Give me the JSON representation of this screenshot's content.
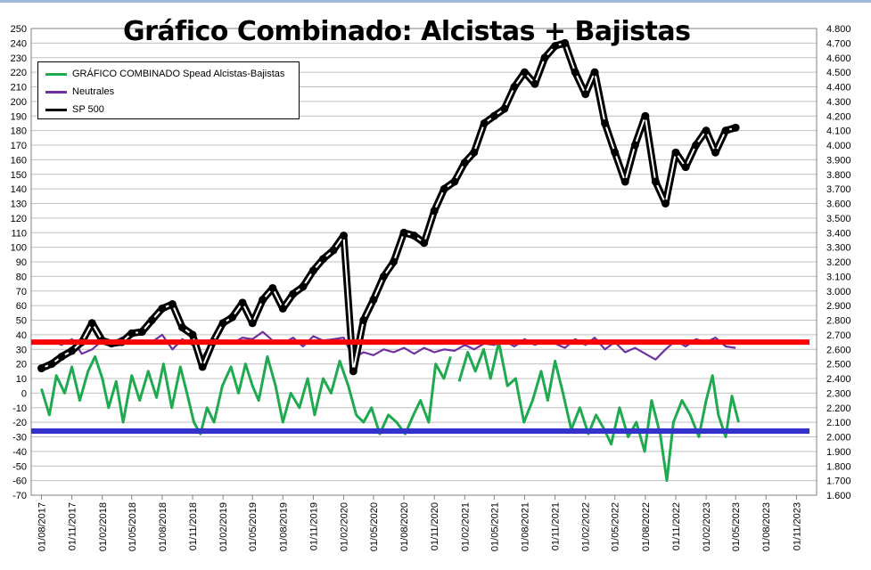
{
  "title": "Gráfico Combinado: Alcistas + Bajistas",
  "colors": {
    "green": "#1faa50",
    "purple": "#7030a0",
    "black": "#000000",
    "red": "#ff0000",
    "blue": "#3333cc",
    "grid": "#c0c0c0"
  },
  "chart_data": {
    "type": "line",
    "title": "Gráfico Combinado: Alcistas + Bajistas",
    "left_axis": {
      "min": -70,
      "max": 250,
      "step": 10
    },
    "right_axis": {
      "min": 1600,
      "max": 4800,
      "step": 100
    },
    "x_tick_labels": [
      "01/08/2017",
      "01/11/2017",
      "01/02/2018",
      "01/05/2018",
      "01/08/2018",
      "01/11/2018",
      "01/02/2019",
      "01/05/2019",
      "01/08/2019",
      "01/11/2019",
      "01/02/2020",
      "01/05/2020",
      "01/08/2020",
      "01/11/2020",
      "01/02/2021",
      "01/05/2021",
      "01/08/2021",
      "01/11/2021",
      "01/02/2022",
      "01/05/2022",
      "01/08/2022",
      "01/11/2022",
      "01/02/2023",
      "01/05/2023",
      "01/08/2023",
      "01/11/2023"
    ],
    "grid": "horizontal",
    "legend_position": "top-left",
    "reference_lines": [
      {
        "axis": "left",
        "value": 35,
        "color": "red"
      },
      {
        "axis": "left",
        "value": -26,
        "color": "blue"
      }
    ],
    "series": [
      {
        "name": "GRÁFICO COMBINADO Spead Alcistas-Bajistas",
        "axis": "left",
        "points": [
          [
            "2017-08-01",
            3
          ],
          [
            "2017-08-25",
            -15
          ],
          [
            "2017-09-15",
            12
          ],
          [
            "2017-10-10",
            0
          ],
          [
            "2017-11-01",
            18
          ],
          [
            "2017-11-25",
            -5
          ],
          [
            "2017-12-20",
            15
          ],
          [
            "2018-01-10",
            25
          ],
          [
            "2018-02-01",
            10
          ],
          [
            "2018-02-20",
            -10
          ],
          [
            "2018-03-15",
            8
          ],
          [
            "2018-04-05",
            -20
          ],
          [
            "2018-05-01",
            12
          ],
          [
            "2018-05-25",
            -5
          ],
          [
            "2018-06-20",
            15
          ],
          [
            "2018-07-15",
            -3
          ],
          [
            "2018-08-05",
            20
          ],
          [
            "2018-08-30",
            -10
          ],
          [
            "2018-09-25",
            18
          ],
          [
            "2018-10-15",
            0
          ],
          [
            "2018-11-05",
            -20
          ],
          [
            "2018-11-25",
            -28
          ],
          [
            "2018-12-15",
            -10
          ],
          [
            "2019-01-05",
            -20
          ],
          [
            "2019-01-30",
            5
          ],
          [
            "2019-02-25",
            18
          ],
          [
            "2019-03-20",
            0
          ],
          [
            "2019-04-10",
            20
          ],
          [
            "2019-05-01",
            5
          ],
          [
            "2019-05-20",
            -5
          ],
          [
            "2019-06-15",
            25
          ],
          [
            "2019-07-10",
            5
          ],
          [
            "2019-08-01",
            -20
          ],
          [
            "2019-08-25",
            0
          ],
          [
            "2019-09-20",
            -10
          ],
          [
            "2019-10-15",
            10
          ],
          [
            "2019-11-05",
            -15
          ],
          [
            "2019-12-01",
            10
          ],
          [
            "2019-12-25",
            0
          ],
          [
            "2020-01-20",
            22
          ],
          [
            "2020-02-15",
            5
          ],
          [
            "2020-03-10",
            -15
          ],
          [
            "2020-04-01",
            -20
          ],
          [
            "2020-04-25",
            -10
          ],
          [
            "2020-05-20",
            -28
          ],
          [
            "2020-06-15",
            -15
          ],
          [
            "2020-07-10",
            -20
          ],
          [
            "2020-08-05",
            -28
          ],
          [
            "2020-08-30",
            -15
          ],
          [
            "2020-09-20",
            -5
          ],
          [
            "2020-10-15",
            -20
          ],
          [
            "2020-11-05",
            20
          ],
          [
            "2020-11-30",
            10
          ],
          [
            "2020-12-20",
            25
          ]
        ],
        "points_b": [
          [
            "2021-01-15",
            8
          ],
          [
            "2021-02-10",
            28
          ],
          [
            "2021-03-05",
            15
          ],
          [
            "2021-03-30",
            30
          ],
          [
            "2021-04-20",
            10
          ],
          [
            "2021-05-15",
            35
          ],
          [
            "2021-06-10",
            5
          ],
          [
            "2021-07-05",
            10
          ],
          [
            "2021-07-30",
            -20
          ],
          [
            "2021-08-25",
            -5
          ],
          [
            "2021-09-20",
            15
          ],
          [
            "2021-10-10",
            -5
          ],
          [
            "2021-11-01",
            22
          ],
          [
            "2021-11-25",
            0
          ],
          [
            "2021-12-20",
            -25
          ],
          [
            "2022-01-15",
            -10
          ],
          [
            "2022-02-10",
            -28
          ],
          [
            "2022-03-05",
            -15
          ],
          [
            "2022-03-30",
            -25
          ],
          [
            "2022-04-20",
            -35
          ],
          [
            "2022-05-15",
            -10
          ],
          [
            "2022-06-10",
            -30
          ],
          [
            "2022-07-05",
            -20
          ],
          [
            "2022-07-30",
            -40
          ],
          [
            "2022-08-20",
            -5
          ],
          [
            "2022-09-15",
            -28
          ],
          [
            "2022-10-05",
            -60
          ],
          [
            "2022-10-25",
            -20
          ],
          [
            "2022-11-20",
            -5
          ],
          [
            "2022-12-15",
            -15
          ],
          [
            "2023-01-10",
            -30
          ],
          [
            "2023-02-01",
            -5
          ],
          [
            "2023-02-20",
            12
          ],
          [
            "2023-03-10",
            -15
          ],
          [
            "2023-04-01",
            -30
          ],
          [
            "2023-04-20",
            -2
          ],
          [
            "2023-05-10",
            -20
          ]
        ]
      },
      {
        "name": "Neutrales",
        "axis": "left",
        "points": [
          [
            "2017-08-01",
            34
          ],
          [
            "2017-09-01",
            36
          ],
          [
            "2017-10-01",
            33
          ],
          [
            "2017-11-01",
            37
          ],
          [
            "2017-12-01",
            27
          ],
          [
            "2018-01-01",
            30
          ],
          [
            "2018-02-01",
            36
          ],
          [
            "2018-03-01",
            34
          ],
          [
            "2018-04-01",
            38
          ],
          [
            "2018-05-01",
            35
          ],
          [
            "2018-06-01",
            36
          ],
          [
            "2018-07-01",
            35
          ],
          [
            "2018-08-01",
            40
          ],
          [
            "2018-09-01",
            30
          ],
          [
            "2018-10-01",
            37
          ],
          [
            "2018-11-01",
            33
          ],
          [
            "2018-12-01",
            25
          ],
          [
            "2019-01-01",
            35
          ],
          [
            "2019-02-01",
            36
          ],
          [
            "2019-03-01",
            34
          ],
          [
            "2019-04-01",
            38
          ],
          [
            "2019-05-01",
            37
          ],
          [
            "2019-06-01",
            42
          ],
          [
            "2019-07-01",
            36
          ],
          [
            "2019-08-01",
            34
          ],
          [
            "2019-09-01",
            38
          ],
          [
            "2019-10-01",
            32
          ],
          [
            "2019-11-01",
            39
          ],
          [
            "2019-12-01",
            36
          ],
          [
            "2020-01-01",
            37
          ],
          [
            "2020-02-01",
            38
          ],
          [
            "2020-03-01",
            24
          ],
          [
            "2020-04-01",
            28
          ],
          [
            "2020-05-01",
            26
          ],
          [
            "2020-06-01",
            30
          ],
          [
            "2020-07-01",
            28
          ],
          [
            "2020-08-01",
            31
          ],
          [
            "2020-09-01",
            27
          ],
          [
            "2020-10-01",
            31
          ],
          [
            "2020-11-01",
            28
          ],
          [
            "2020-12-01",
            30
          ],
          [
            "2021-01-01",
            29
          ],
          [
            "2021-02-01",
            33
          ],
          [
            "2021-03-01",
            30
          ],
          [
            "2021-04-01",
            34
          ],
          [
            "2021-05-01",
            33
          ],
          [
            "2021-06-01",
            36
          ],
          [
            "2021-07-01",
            32
          ],
          [
            "2021-08-01",
            37
          ],
          [
            "2021-09-01",
            33
          ],
          [
            "2021-10-01",
            36
          ],
          [
            "2021-11-01",
            34
          ],
          [
            "2021-12-01",
            31
          ],
          [
            "2022-01-01",
            37
          ],
          [
            "2022-02-01",
            33
          ],
          [
            "2022-03-01",
            38
          ],
          [
            "2022-04-01",
            30
          ],
          [
            "2022-05-01",
            35
          ],
          [
            "2022-06-01",
            28
          ],
          [
            "2022-07-01",
            31
          ],
          [
            "2022-08-01",
            27
          ],
          [
            "2022-09-01",
            23
          ],
          [
            "2022-10-01",
            30
          ],
          [
            "2022-11-01",
            36
          ],
          [
            "2022-12-01",
            32
          ],
          [
            "2023-01-01",
            37
          ],
          [
            "2023-02-01",
            35
          ],
          [
            "2023-03-01",
            38
          ],
          [
            "2023-04-01",
            32
          ],
          [
            "2023-05-01",
            31
          ]
        ]
      },
      {
        "name": "SP 500",
        "axis": "right",
        "points": [
          [
            "2017-08-01",
            2470
          ],
          [
            "2017-09-01",
            2500
          ],
          [
            "2017-10-01",
            2550
          ],
          [
            "2017-11-01",
            2590
          ],
          [
            "2017-12-01",
            2650
          ],
          [
            "2018-01-01",
            2780
          ],
          [
            "2018-02-01",
            2660
          ],
          [
            "2018-03-01",
            2640
          ],
          [
            "2018-04-01",
            2650
          ],
          [
            "2018-05-01",
            2710
          ],
          [
            "2018-06-01",
            2720
          ],
          [
            "2018-07-01",
            2800
          ],
          [
            "2018-08-01",
            2880
          ],
          [
            "2018-09-01",
            2910
          ],
          [
            "2018-10-01",
            2750
          ],
          [
            "2018-11-01",
            2700
          ],
          [
            "2018-12-01",
            2480
          ],
          [
            "2019-01-01",
            2650
          ],
          [
            "2019-02-01",
            2780
          ],
          [
            "2019-03-01",
            2820
          ],
          [
            "2019-04-01",
            2920
          ],
          [
            "2019-05-01",
            2780
          ],
          [
            "2019-06-01",
            2940
          ],
          [
            "2019-07-01",
            3020
          ],
          [
            "2019-08-01",
            2880
          ],
          [
            "2019-09-01",
            2980
          ],
          [
            "2019-10-01",
            3030
          ],
          [
            "2019-11-01",
            3140
          ],
          [
            "2019-12-01",
            3220
          ],
          [
            "2020-01-01",
            3280
          ],
          [
            "2020-02-01",
            3380
          ],
          [
            "2020-03-01",
            2450
          ],
          [
            "2020-04-01",
            2800
          ],
          [
            "2020-05-01",
            2940
          ],
          [
            "2020-06-01",
            3100
          ],
          [
            "2020-07-01",
            3200
          ],
          [
            "2020-08-01",
            3400
          ],
          [
            "2020-09-01",
            3380
          ],
          [
            "2020-10-01",
            3330
          ],
          [
            "2020-11-01",
            3550
          ],
          [
            "2020-12-01",
            3700
          ],
          [
            "2021-01-01",
            3750
          ],
          [
            "2021-02-01",
            3880
          ],
          [
            "2021-03-01",
            3950
          ],
          [
            "2021-04-01",
            4150
          ],
          [
            "2021-05-01",
            4200
          ],
          [
            "2021-06-01",
            4250
          ],
          [
            "2021-07-01",
            4400
          ],
          [
            "2021-08-01",
            4500
          ],
          [
            "2021-09-01",
            4420
          ],
          [
            "2021-10-01",
            4600
          ],
          [
            "2021-11-01",
            4680
          ],
          [
            "2021-12-01",
            4700
          ],
          [
            "2022-01-01",
            4500
          ],
          [
            "2022-02-01",
            4350
          ],
          [
            "2022-03-01",
            4500
          ],
          [
            "2022-04-01",
            4150
          ],
          [
            "2022-05-01",
            3950
          ],
          [
            "2022-06-01",
            3750
          ],
          [
            "2022-07-01",
            4000
          ],
          [
            "2022-08-01",
            4200
          ],
          [
            "2022-09-01",
            3750
          ],
          [
            "2022-10-01",
            3600
          ],
          [
            "2022-11-01",
            3950
          ],
          [
            "2022-12-01",
            3850
          ],
          [
            "2023-01-01",
            4000
          ],
          [
            "2023-02-01",
            4100
          ],
          [
            "2023-03-01",
            3950
          ],
          [
            "2023-04-01",
            4100
          ],
          [
            "2023-05-01",
            4120
          ]
        ]
      }
    ]
  }
}
